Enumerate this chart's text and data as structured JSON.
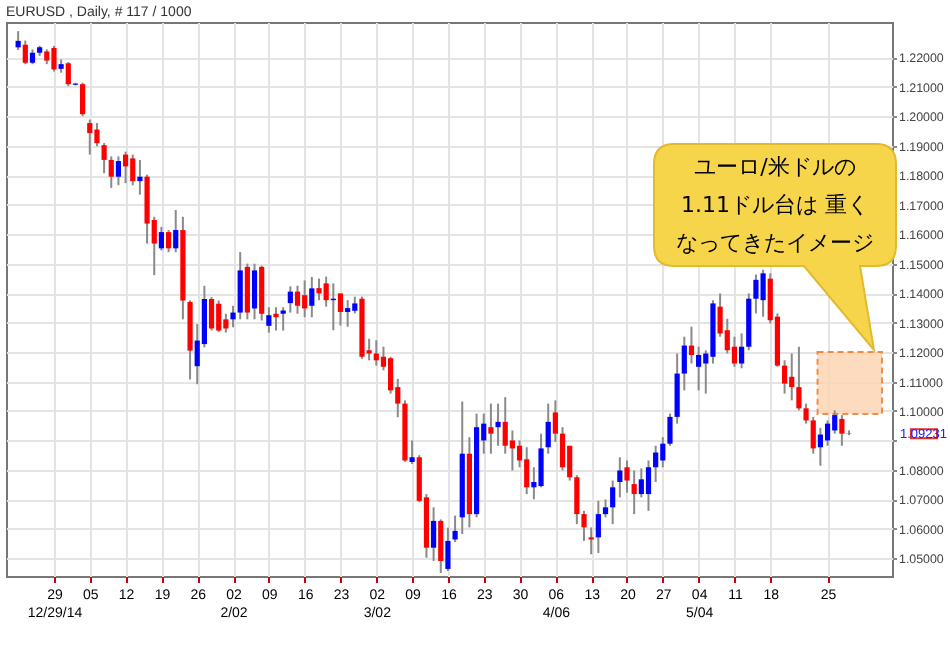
{
  "chart_data": {
    "type": "candlestick",
    "title": "EURUSD , Daily, # 117 / 1000",
    "categories": [
      null,
      null,
      null,
      null,
      null,
      "29\n12/29/14",
      null,
      null,
      null,
      null,
      "05",
      null,
      null,
      null,
      null,
      "12",
      null,
      null,
      null,
      null,
      "19",
      null,
      null,
      null,
      null,
      "26",
      null,
      null,
      null,
      null,
      "02\n2/02",
      null,
      null,
      null,
      null,
      "09",
      null,
      null,
      null,
      null,
      "16",
      null,
      null,
      null,
      null,
      "23",
      null,
      null,
      null,
      null,
      "02\n3/02",
      null,
      null,
      null,
      null,
      "09",
      null,
      null,
      null,
      null,
      "16",
      null,
      null,
      null,
      null,
      "23",
      null,
      null,
      null,
      null,
      "30",
      null,
      null,
      null,
      null,
      "06\n4/06",
      null,
      null,
      null,
      null,
      "13",
      null,
      null,
      null,
      null,
      "20",
      null,
      null,
      null,
      null,
      "27",
      null,
      null,
      null,
      null,
      "04\n5/04",
      null,
      null,
      null,
      null,
      "11",
      null,
      null,
      null,
      null,
      "18",
      null,
      null,
      null,
      null,
      null,
      null,
      null,
      "25",
      null,
      null,
      null
    ],
    "ohlc": [
      [
        1.2234,
        1.2289,
        1.2225,
        1.2256
      ],
      [
        1.2243,
        1.2257,
        1.2177,
        1.2182
      ],
      [
        1.2182,
        1.2227,
        1.2177,
        1.2216
      ],
      [
        1.2216,
        1.2239,
        1.2205,
        1.2234
      ],
      [
        1.222,
        1.2227,
        1.2177,
        1.2189
      ],
      [
        1.2232,
        1.2239,
        1.2152,
        1.2159
      ],
      [
        1.2161,
        1.2193,
        1.2148,
        1.2177
      ],
      [
        1.218,
        1.2184,
        1.2102,
        1.2109
      ],
      [
        1.2107,
        1.2114,
        1.2105,
        1.2111
      ],
      [
        1.2109,
        1.2114,
        1.2,
        1.2007
      ],
      [
        1.1977,
        1.1989,
        1.187,
        1.1943
      ],
      [
        1.1955,
        1.1977,
        1.1898,
        1.1909
      ],
      [
        1.1902,
        1.1909,
        1.1807,
        1.1852
      ],
      [
        1.1852,
        1.1864,
        1.1757,
        1.1795
      ],
      [
        1.1795,
        1.1864,
        1.1766,
        1.1848
      ],
      [
        1.187,
        1.188,
        1.1773,
        1.183
      ],
      [
        1.1857,
        1.187,
        1.1766,
        1.178
      ],
      [
        1.178,
        1.1852,
        1.1734,
        1.1795
      ],
      [
        1.1795,
        1.1802,
        1.1568,
        1.1636
      ],
      [
        1.1648,
        1.1659,
        1.1461,
        1.1568
      ],
      [
        1.1552,
        1.1625,
        1.1545,
        1.1607
      ],
      [
        1.1607,
        1.1614,
        1.1539,
        1.1552
      ],
      [
        1.1552,
        1.1682,
        1.1539,
        1.1614
      ],
      [
        1.1614,
        1.1659,
        1.1311,
        1.1375
      ],
      [
        1.137,
        1.1375,
        1.1107,
        1.1205
      ],
      [
        1.1152,
        1.1295,
        1.1091,
        1.1239
      ],
      [
        1.1227,
        1.1425,
        1.1216,
        1.138
      ],
      [
        1.138,
        1.1386,
        1.1273,
        1.128
      ],
      [
        1.1364,
        1.1375,
        1.1268,
        1.1273
      ],
      [
        1.1311,
        1.133,
        1.1266,
        1.128
      ],
      [
        1.1311,
        1.1357,
        1.1284,
        1.1334
      ],
      [
        1.1334,
        1.1539,
        1.1311,
        1.1477
      ],
      [
        1.1489,
        1.15,
        1.1311,
        1.1334
      ],
      [
        1.1348,
        1.15,
        1.1311,
        1.1477
      ],
      [
        1.1489,
        1.1493,
        1.1307,
        1.133
      ],
      [
        1.1289,
        1.1352,
        1.1266,
        1.1325
      ],
      [
        1.133,
        1.1352,
        1.1273,
        1.1318
      ],
      [
        1.133,
        1.1352,
        1.1273,
        1.1341
      ],
      [
        1.1366,
        1.1423,
        1.1334,
        1.1405
      ],
      [
        1.1405,
        1.1425,
        1.133,
        1.1357
      ],
      [
        1.1393,
        1.1443,
        1.1318,
        1.1348
      ],
      [
        1.1357,
        1.1455,
        1.1318,
        1.1416
      ],
      [
        1.1417,
        1.1449,
        1.1376,
        1.1399
      ],
      [
        1.1433,
        1.1456,
        1.1354,
        1.1376
      ],
      [
        1.1376,
        1.1433,
        1.1274,
        1.1381
      ],
      [
        1.1399,
        1.1399,
        1.129,
        1.1336
      ],
      [
        1.1336,
        1.1376,
        1.1286,
        1.1349
      ],
      [
        1.134,
        1.1388,
        1.1331,
        1.1365
      ],
      [
        1.1381,
        1.1388,
        1.1177,
        1.1184
      ],
      [
        1.1206,
        1.1245,
        1.1172,
        1.1195
      ],
      [
        1.1195,
        1.124,
        1.1154,
        1.1172
      ],
      [
        1.1184,
        1.1218,
        1.1138,
        1.115
      ],
      [
        1.1179,
        1.1184,
        1.1059,
        1.107
      ],
      [
        1.1081,
        1.1109,
        1.0979,
        1.1025
      ],
      [
        1.1025,
        1.1036,
        1.0827,
        1.0832
      ],
      [
        1.0827,
        1.09,
        1.082,
        1.0843
      ],
      [
        1.0843,
        1.085,
        1.0691,
        1.0695
      ],
      [
        1.0707,
        1.0718,
        1.0502,
        1.0536
      ],
      [
        1.0536,
        1.0673,
        1.0491,
        1.0627
      ],
      [
        1.0627,
        1.0632,
        1.045,
        1.0491
      ],
      [
        1.0464,
        1.0604,
        1.0457,
        1.0559
      ],
      [
        1.0564,
        1.0645,
        1.0555,
        1.0593
      ],
      [
        1.0639,
        1.1032,
        1.0582,
        1.0855
      ],
      [
        1.0855,
        1.0911,
        1.0605,
        1.065
      ],
      [
        1.065,
        1.0991,
        1.0639,
        1.0945
      ],
      [
        1.09,
        1.0991,
        1.0855,
        1.0957
      ],
      [
        1.0945,
        1.1025,
        1.0855,
        1.0923
      ],
      [
        1.0945,
        1.1025,
        1.0882,
        1.0963
      ],
      [
        1.0963,
        1.1047,
        1.0855,
        1.0882
      ],
      [
        1.09,
        1.0934,
        1.0798,
        1.0873
      ],
      [
        1.0882,
        1.09,
        1.0809,
        1.0832
      ],
      [
        1.0836,
        1.0877,
        1.0718,
        1.0741
      ],
      [
        1.0741,
        1.0809,
        1.07,
        1.0759
      ],
      [
        1.0745,
        1.0923,
        1.0741,
        1.0873
      ],
      [
        1.0877,
        1.1025,
        1.0855,
        1.0963
      ],
      [
        1.0995,
        1.1036,
        1.0895,
        1.0923
      ],
      [
        1.0923,
        1.0945,
        1.0798,
        1.0809
      ],
      [
        1.0882,
        1.0882,
        1.0764,
        1.0775
      ],
      [
        1.0775,
        1.0782,
        1.0616,
        1.065
      ],
      [
        1.065,
        1.0661,
        1.0559,
        1.0605
      ],
      [
        1.0571,
        1.0605,
        1.0514,
        1.0564
      ],
      [
        1.0571,
        1.0695,
        1.0518,
        1.065
      ],
      [
        1.065,
        1.07,
        1.0639,
        1.0673
      ],
      [
        1.0673,
        1.0764,
        1.0616,
        1.0741
      ],
      [
        1.0759,
        1.0843,
        1.0707,
        1.0798
      ],
      [
        1.0809,
        1.0832,
        1.0723,
        1.0764
      ],
      [
        1.0752,
        1.0798,
        1.065,
        1.0718
      ],
      [
        1.0718,
        1.0805,
        1.0707,
        1.0768
      ],
      [
        1.0718,
        1.0832,
        1.0661,
        1.0809
      ],
      [
        1.0809,
        1.0882,
        1.0759,
        1.0859
      ],
      [
        1.0832,
        1.0911,
        1.0809,
        1.0889
      ],
      [
        1.0889,
        1.0991,
        1.0882,
        1.098
      ],
      [
        1.098,
        1.1195,
        1.0957,
        1.1127
      ],
      [
        1.1127,
        1.1252,
        1.107,
        1.1222
      ],
      [
        1.1222,
        1.1286,
        1.1161,
        1.119
      ],
      [
        1.115,
        1.1218,
        1.107,
        1.119
      ],
      [
        1.1161,
        1.1206,
        1.1059,
        1.1195
      ],
      [
        1.1184,
        1.1376,
        1.1161,
        1.1365
      ],
      [
        1.1354,
        1.1399,
        1.1252,
        1.1263
      ],
      [
        1.1274,
        1.1313,
        1.1195,
        1.1206
      ],
      [
        1.1218,
        1.1252,
        1.115,
        1.1161
      ],
      [
        1.1161,
        1.1263,
        1.1145,
        1.1218
      ],
      [
        1.1218,
        1.1399,
        1.1206,
        1.1381
      ],
      [
        1.1381,
        1.1463,
        1.1331,
        1.1445
      ],
      [
        1.1376,
        1.1479,
        1.132,
        1.1467
      ],
      [
        1.1449,
        1.1467,
        1.1297,
        1.1308
      ],
      [
        1.132,
        1.1331,
        1.115,
        1.1154
      ],
      [
        1.1154,
        1.1172,
        1.1059,
        1.1093
      ],
      [
        1.1116,
        1.1195,
        1.1036,
        1.1081
      ],
      [
        1.1081,
        1.1218,
        1.1002,
        1.1009
      ],
      [
        1.1009,
        1.1025,
        1.0957,
        1.0968
      ],
      [
        1.0968,
        1.098,
        1.0855,
        1.0873
      ],
      [
        1.0877,
        1.0943,
        1.0814,
        1.092
      ],
      [
        1.09,
        1.0968,
        1.0882,
        1.0957
      ],
      [
        1.0934,
        1.1002,
        1.0923,
        1.0986
      ],
      [
        1.0973,
        1.0986,
        1.0882,
        1.0923
      ],
      [
        1.0925,
        1.0934,
        1.0918,
        1.0923
      ]
    ],
    "colors": [
      "#0000ff",
      "#ff0000",
      "#0000ff",
      "#0000ff",
      "#ff0000",
      "#ff0000",
      "#0000ff",
      "#ff0000",
      "#0000ff",
      "#ff0000",
      "#ff0000",
      "#ff0000",
      "#ff0000",
      "#ff0000",
      "#0000ff",
      "#ff0000",
      "#ff0000",
      "#0000ff",
      "#ff0000",
      "#ff0000",
      "#0000ff",
      "#ff0000",
      "#0000ff",
      "#ff0000",
      "#ff0000",
      "#0000ff",
      "#0000ff",
      "#ff0000",
      "#ff0000",
      "#ff0000",
      "#0000ff",
      "#0000ff",
      "#ff0000",
      "#0000ff",
      "#ff0000",
      "#0000ff",
      "#ff0000",
      "#0000ff",
      "#0000ff",
      "#ff0000",
      "#ff0000",
      "#0000ff",
      "#ff0000",
      "#ff0000",
      "#0000ff",
      "#ff0000",
      "#0000ff",
      "#0000ff",
      "#ff0000",
      "#ff0000",
      "#ff0000",
      "#ff0000",
      "#ff0000",
      "#ff0000",
      "#ff0000",
      "#0000ff",
      "#ff0000",
      "#ff0000",
      "#0000ff",
      "#ff0000",
      "#0000ff",
      "#0000ff",
      "#0000ff",
      "#ff0000",
      "#0000ff",
      "#0000ff",
      "#ff0000",
      "#0000ff",
      "#ff0000",
      "#ff0000",
      "#ff0000",
      "#ff0000",
      "#0000ff",
      "#0000ff",
      "#0000ff",
      "#ff0000",
      "#ff0000",
      "#ff0000",
      "#ff0000",
      "#ff0000",
      "#ff0000",
      "#0000ff",
      "#0000ff",
      "#0000ff",
      "#0000ff",
      "#ff0000",
      "#ff0000",
      "#0000ff",
      "#0000ff",
      "#0000ff",
      "#0000ff",
      "#0000ff",
      "#0000ff",
      "#0000ff",
      "#ff0000",
      "#0000ff",
      "#0000ff",
      "#0000ff",
      "#ff0000",
      "#ff0000",
      "#ff0000",
      "#0000ff",
      "#0000ff",
      "#0000ff",
      "#0000ff",
      "#ff0000",
      "#ff0000",
      "#ff0000",
      "#ff0000",
      "#ff0000",
      "#ff0000",
      "#ff0000",
      "#0000ff",
      "#0000ff",
      "#0000ff",
      "#ff0000",
      "#808080"
    ],
    "ylim": [
      1.044,
      1.232
    ],
    "yticks": [
      {
        "value": 1.05,
        "label": "1.05000"
      },
      {
        "value": 1.06,
        "label": "1.06000"
      },
      {
        "value": 1.07,
        "label": "1.07000"
      },
      {
        "value": 1.08,
        "label": "1.08000"
      },
      {
        "value": 1.09,
        "label": null
      },
      {
        "value": 1.1,
        "label": "1.10000"
      },
      {
        "value": 1.11,
        "label": "1.11000"
      },
      {
        "value": 1.12,
        "label": "1.12000"
      },
      {
        "value": 1.13,
        "label": "1.13000"
      },
      {
        "value": 1.14,
        "label": "1.14000"
      },
      {
        "value": 1.15,
        "label": "1.15000"
      },
      {
        "value": 1.16,
        "label": "1.16000"
      },
      {
        "value": 1.17,
        "label": "1.17000"
      },
      {
        "value": 1.18,
        "label": "1.18000"
      },
      {
        "value": 1.19,
        "label": "1.19000"
      },
      {
        "value": 1.2,
        "label": "1.20000"
      },
      {
        "value": 1.21,
        "label": "1.21000"
      },
      {
        "value": 1.22,
        "label": "1.22000"
      }
    ],
    "grid": true,
    "bands": [
      {
        "axis": "y",
        "from": 1.099,
        "to": 1.12,
        "color": "#fcd5b5"
      }
    ],
    "annotations": [
      "ユーロ/米ドルの",
      "1.11ドル台は 重く",
      "なってきたイメージ",
      "1.09231"
    ]
  }
}
